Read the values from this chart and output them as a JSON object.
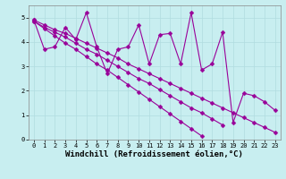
{
  "xlabel": "Windchill (Refroidissement éolien,°C)",
  "ylabel": "",
  "xlim": [
    -0.5,
    23.5
  ],
  "ylim": [
    0,
    5.5
  ],
  "xticks": [
    0,
    1,
    2,
    3,
    4,
    5,
    6,
    7,
    8,
    9,
    10,
    11,
    12,
    13,
    14,
    15,
    16,
    17,
    18,
    19,
    20,
    21,
    22,
    23
  ],
  "yticks": [
    0,
    1,
    2,
    3,
    4,
    5
  ],
  "bg_color": "#c8eef0",
  "grid_color": "#b0dce0",
  "line_color": "#990099",
  "data_series": [
    [
      4.9,
      3.7,
      3.8,
      4.6,
      4.1,
      5.2,
      3.8,
      2.7,
      3.7,
      3.8,
      4.7,
      3.1,
      4.3,
      4.35,
      3.1,
      5.2,
      2.85,
      3.1,
      4.4,
      0.7,
      1.9,
      1.8,
      1.55,
      1.2
    ],
    [
      4.85,
      4.55,
      4.25,
      3.95,
      3.7,
      3.4,
      3.1,
      2.85,
      2.55,
      2.25,
      1.95,
      1.65,
      1.35,
      1.05,
      0.75,
      0.45,
      0.15
    ],
    [
      4.85,
      4.6,
      4.4,
      4.2,
      3.95,
      3.7,
      3.5,
      3.25,
      3.0,
      2.75,
      2.5,
      2.3,
      2.05,
      1.8,
      1.55,
      1.3,
      1.1,
      0.85,
      0.6
    ],
    [
      4.9,
      4.7,
      4.5,
      4.35,
      4.15,
      3.95,
      3.75,
      3.55,
      3.35,
      3.1,
      2.9,
      2.7,
      2.5,
      2.3,
      2.1,
      1.9,
      1.7,
      1.5,
      1.3,
      1.1,
      0.9,
      0.7,
      0.5,
      0.3
    ]
  ],
  "series_x": [
    [
      0,
      1,
      2,
      3,
      4,
      5,
      6,
      7,
      8,
      9,
      10,
      11,
      12,
      13,
      14,
      15,
      16,
      17,
      18,
      19,
      20,
      21,
      22,
      23
    ],
    [
      0,
      1,
      2,
      3,
      4,
      5,
      6,
      7,
      8,
      9,
      10,
      11,
      12,
      13,
      14,
      15,
      16
    ],
    [
      0,
      1,
      2,
      3,
      4,
      5,
      6,
      7,
      8,
      9,
      10,
      11,
      12,
      13,
      14,
      15,
      16,
      17,
      18
    ],
    [
      0,
      1,
      2,
      3,
      4,
      5,
      6,
      7,
      8,
      9,
      10,
      11,
      12,
      13,
      14,
      15,
      16,
      17,
      18,
      19,
      20,
      21,
      22,
      23
    ]
  ],
  "marker": "D",
  "markersize": 2.5,
  "linewidth": 0.8,
  "tick_fontsize": 5,
  "xlabel_fontsize": 6.5
}
